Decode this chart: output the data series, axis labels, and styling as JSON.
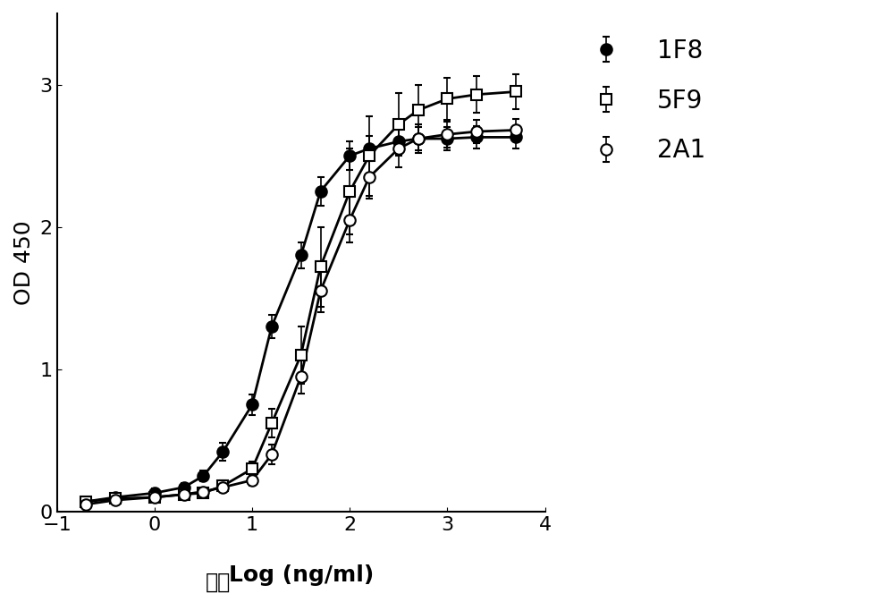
{
  "title": "",
  "xlabel_top": "浓度",
  "xlabel_bottom": "Log (ng/ml)",
  "ylabel": "OD 450",
  "xlim": [
    -1,
    4
  ],
  "ylim": [
    0,
    3.5
  ],
  "yticks": [
    0,
    1,
    2,
    3
  ],
  "xticks": [
    -1,
    0,
    1,
    2,
    3,
    4
  ],
  "background_color": "#ffffff",
  "series": [
    {
      "label": "1F8",
      "marker": "o",
      "fillstyle": "full",
      "color": "#000000",
      "x": [
        -0.7,
        -0.4,
        0.0,
        0.3,
        0.5,
        0.7,
        1.0,
        1.2,
        1.5,
        1.7,
        2.0,
        2.2,
        2.5,
        2.7,
        3.0,
        3.3,
        3.7
      ],
      "y": [
        0.07,
        0.1,
        0.13,
        0.17,
        0.25,
        0.42,
        0.75,
        1.3,
        1.8,
        2.25,
        2.5,
        2.55,
        2.6,
        2.62,
        2.62,
        2.63,
        2.63
      ],
      "yerr": [
        0.02,
        0.02,
        0.03,
        0.03,
        0.04,
        0.06,
        0.07,
        0.08,
        0.09,
        0.1,
        0.1,
        0.09,
        0.09,
        0.08,
        0.08,
        0.08,
        0.08
      ],
      "ec50": 0.7
    },
    {
      "label": "5F9",
      "marker": "s",
      "fillstyle": "none",
      "color": "#000000",
      "x": [
        -0.7,
        -0.4,
        0.0,
        0.3,
        0.5,
        0.7,
        1.0,
        1.2,
        1.5,
        1.7,
        2.0,
        2.2,
        2.5,
        2.7,
        3.0,
        3.3,
        3.7
      ],
      "y": [
        0.07,
        0.09,
        0.1,
        0.12,
        0.13,
        0.18,
        0.3,
        0.62,
        1.1,
        1.72,
        2.25,
        2.5,
        2.72,
        2.82,
        2.9,
        2.93,
        2.95
      ],
      "yerr": [
        0.02,
        0.02,
        0.02,
        0.03,
        0.03,
        0.04,
        0.05,
        0.1,
        0.2,
        0.28,
        0.3,
        0.28,
        0.22,
        0.18,
        0.15,
        0.13,
        0.12
      ],
      "ec50": 1.7
    },
    {
      "label": "2A1",
      "marker": "o",
      "fillstyle": "none",
      "color": "#000000",
      "x": [
        -0.7,
        -0.4,
        0.0,
        0.3,
        0.5,
        0.7,
        1.0,
        1.2,
        1.5,
        1.7,
        2.0,
        2.2,
        2.5,
        2.7,
        3.0,
        3.3,
        3.7
      ],
      "y": [
        0.05,
        0.08,
        0.1,
        0.12,
        0.14,
        0.17,
        0.22,
        0.4,
        0.95,
        1.55,
        2.05,
        2.35,
        2.55,
        2.62,
        2.65,
        2.67,
        2.68
      ],
      "yerr": [
        0.02,
        0.02,
        0.02,
        0.03,
        0.03,
        0.03,
        0.04,
        0.07,
        0.12,
        0.15,
        0.16,
        0.15,
        0.13,
        0.1,
        0.09,
        0.08,
        0.08
      ],
      "ec50": 1.3
    }
  ],
  "legend_fontsize": 20,
  "axis_fontsize": 18,
  "tick_fontsize": 16,
  "linewidth": 2.0,
  "markersize": 9
}
